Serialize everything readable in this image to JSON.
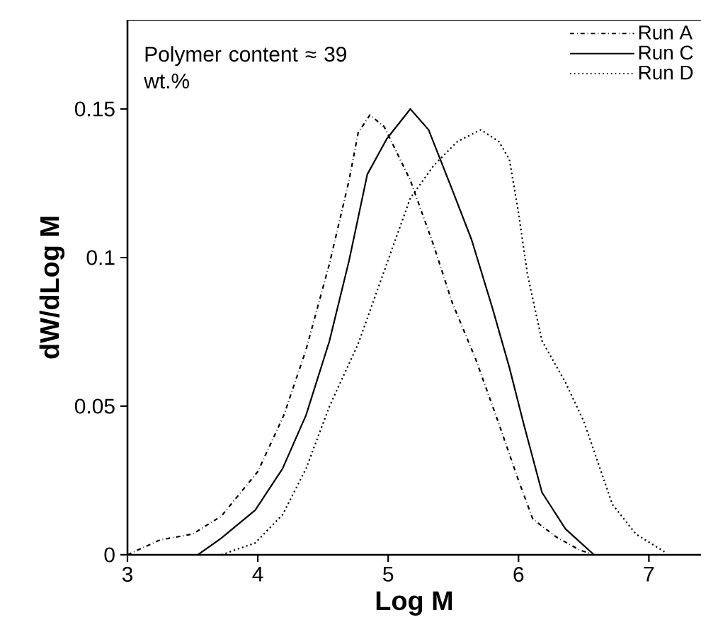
{
  "chart_data": {
    "type": "line",
    "xlabel": "Log M",
    "ylabel": "dW/dLog M",
    "annotations": [
      "Polymer content ≈ 39 wt.%"
    ],
    "xlim": [
      3,
      7.4
    ],
    "ylim": [
      0,
      0.18
    ],
    "xticks": [
      3,
      4,
      5,
      6,
      7
    ],
    "yticks": [
      0,
      0.05,
      0.1,
      0.15
    ],
    "legend": "top right",
    "grid": false,
    "marker": "none",
    "series": [
      {
        "name": "Run A",
        "color": "#000000",
        "line_style": "dashdotted",
        "x": [
          3.0,
          3.25,
          3.5,
          3.72,
          4.0,
          4.2,
          4.37,
          4.55,
          4.7,
          4.77,
          4.86,
          4.97,
          5.17,
          5.35,
          5.49,
          5.67,
          5.85,
          6.0,
          6.11,
          6.29,
          6.47,
          6.58
        ],
        "values": [
          0.0,
          0.005,
          0.007,
          0.013,
          0.028,
          0.047,
          0.069,
          0.098,
          0.126,
          0.142,
          0.148,
          0.144,
          0.126,
          0.104,
          0.085,
          0.066,
          0.044,
          0.025,
          0.012,
          0.006,
          0.0016,
          0.0
        ]
      },
      {
        "name": "Run C",
        "color": "#000000",
        "line_style": "solid",
        "x": [
          3.54,
          3.72,
          3.98,
          4.19,
          4.37,
          4.55,
          4.7,
          4.84,
          4.99,
          5.17,
          5.31,
          5.49,
          5.64,
          5.8,
          5.93,
          6.04,
          6.18,
          6.36,
          6.58
        ],
        "values": [
          0.0,
          0.0056,
          0.015,
          0.029,
          0.047,
          0.072,
          0.099,
          0.128,
          0.14,
          0.15,
          0.143,
          0.123,
          0.106,
          0.083,
          0.063,
          0.044,
          0.021,
          0.0087,
          0.0
        ]
      },
      {
        "name": "Run D",
        "color": "#000000",
        "line_style": "dotted",
        "x": [
          3.72,
          3.98,
          4.19,
          4.37,
          4.55,
          4.77,
          4.99,
          5.17,
          5.35,
          5.53,
          5.71,
          5.85,
          5.93,
          6.0,
          6.07,
          6.18,
          6.36,
          6.5,
          6.61,
          6.72,
          6.9,
          7.12
        ],
        "values": [
          0.0,
          0.004,
          0.0135,
          0.029,
          0.05,
          0.071,
          0.098,
          0.12,
          0.131,
          0.139,
          0.143,
          0.139,
          0.133,
          0.115,
          0.094,
          0.072,
          0.058,
          0.045,
          0.031,
          0.017,
          0.007,
          0.001
        ]
      }
    ]
  }
}
